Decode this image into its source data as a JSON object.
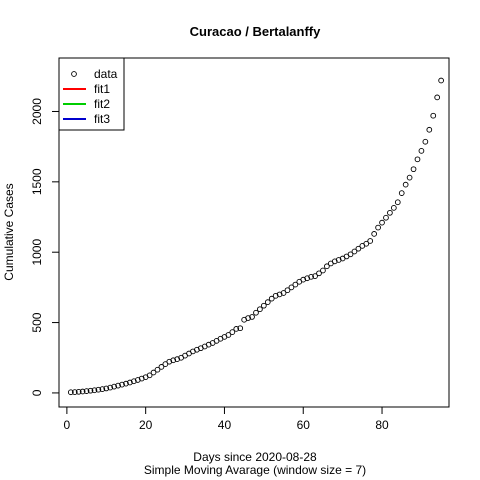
{
  "chart_data": {
    "type": "scatter",
    "title": "Curacao / Bertalanffy",
    "xlabel": "Days since 2020-08-28",
    "subtitle": "Simple Moving Avarage (window size = 7)",
    "ylabel": "Cumulative Cases",
    "xlim": [
      -2,
      97
    ],
    "ylim": [
      -100,
      2380
    ],
    "x_ticks": [
      0,
      20,
      40,
      60,
      80
    ],
    "y_ticks": [
      0,
      500,
      1000,
      1500,
      2000
    ],
    "grid": false,
    "legend": {
      "placement": "top-left",
      "entries": [
        {
          "label": "data",
          "kind": "point",
          "color": "#000000"
        },
        {
          "label": "fit1",
          "kind": "line",
          "color": "#ff0000"
        },
        {
          "label": "fit2",
          "kind": "line",
          "color": "#00cd00"
        },
        {
          "label": "fit3",
          "kind": "line",
          "color": "#0000cd"
        }
      ]
    },
    "series": [
      {
        "x": [
          1,
          2,
          3,
          4,
          5,
          6,
          7,
          8,
          9,
          10,
          11,
          12,
          13,
          14,
          15,
          16,
          17,
          18,
          19,
          20,
          21,
          22,
          23,
          24,
          25,
          26,
          27,
          28,
          29,
          30,
          31,
          32,
          33,
          34,
          35,
          36,
          37,
          38,
          39,
          40,
          41,
          42,
          43,
          44,
          45,
          46,
          47,
          48,
          49,
          50,
          51,
          52,
          53,
          54,
          55,
          56,
          57,
          58,
          59,
          60,
          61,
          62,
          63,
          64,
          65,
          66,
          67,
          68,
          69,
          70,
          71,
          72,
          73,
          74,
          75,
          76,
          77,
          78,
          79,
          80,
          81,
          82,
          83,
          84,
          85,
          86,
          87,
          88,
          89,
          90,
          91,
          92,
          93,
          94,
          95
        ],
        "y": [
          5,
          6,
          8,
          10,
          13,
          16,
          19,
          23,
          27,
          32,
          38,
          45,
          52,
          59,
          66,
          74,
          83,
          92,
          102,
          112,
          125,
          145,
          165,
          185,
          205,
          222,
          232,
          240,
          250,
          265,
          280,
          295,
          307,
          318,
          330,
          343,
          355,
          370,
          385,
          398,
          412,
          432,
          455,
          460,
          520,
          532,
          540,
          570,
          595,
          620,
          645,
          670,
          690,
          700,
          710,
          730,
          750,
          770,
          790,
          805,
          815,
          825,
          830,
          850,
          870,
          900,
          920,
          935,
          945,
          955,
          970,
          985,
          1005,
          1025,
          1045,
          1060,
          1080,
          1130,
          1175,
          1210,
          1245,
          1280,
          1315,
          1355,
          1420,
          1480,
          1530,
          1590,
          1660,
          1720,
          1785,
          1870,
          1970,
          2100,
          2220
        ]
      }
    ]
  }
}
